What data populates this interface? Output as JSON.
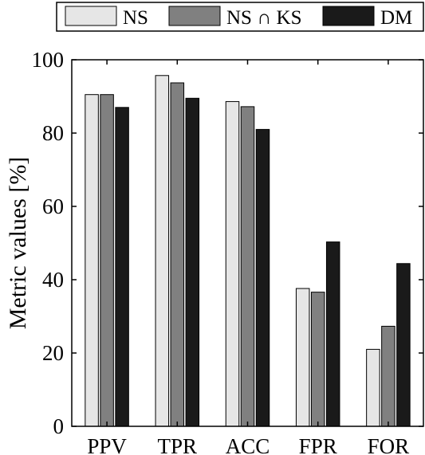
{
  "chart_data": {
    "type": "bar",
    "title": "",
    "xlabel": "",
    "ylabel": "Metric values [%]",
    "ylim": [
      0,
      100
    ],
    "yticks": [
      0,
      20,
      40,
      60,
      80,
      100
    ],
    "grid": false,
    "legend_placement": "top",
    "categories": [
      "PPV",
      "TPR",
      "ACC",
      "FPR",
      "FOR"
    ],
    "series": [
      {
        "name": "NS",
        "color": "#e6e6e6",
        "values": [
          90.5,
          95.7,
          88.6,
          37.6,
          21.0
        ]
      },
      {
        "name": "NS ∩ KS",
        "color": "#808080",
        "values": [
          90.5,
          93.7,
          87.2,
          36.6,
          27.3
        ]
      },
      {
        "name": "DM",
        "color": "#1a1a1a",
        "values": [
          87.0,
          89.5,
          81.0,
          50.3,
          44.4
        ]
      }
    ]
  }
}
